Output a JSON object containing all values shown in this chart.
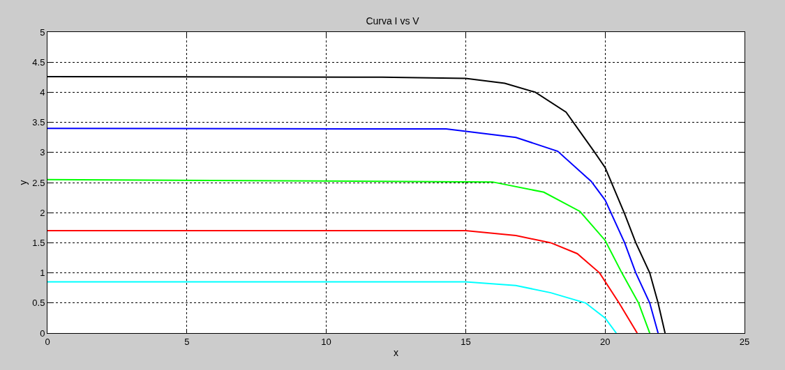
{
  "chart_data": {
    "type": "line",
    "title": "Curva I vs V",
    "xlabel": "x",
    "ylabel": "y",
    "xlim": [
      0,
      25
    ],
    "ylim": [
      0,
      5
    ],
    "xticks": [
      0,
      5,
      10,
      15,
      20,
      25
    ],
    "yticks": [
      0,
      0.5,
      1,
      1.5,
      2,
      2.5,
      3,
      3.5,
      4,
      4.5,
      5
    ],
    "grid": true,
    "marker": "none",
    "line_style": "solid",
    "series": [
      {
        "color": "#000000",
        "x": [
          0,
          12,
          15,
          16.4,
          17.5,
          18.6,
          19.6,
          20,
          20.7,
          21.1,
          21.6,
          21.9,
          22.15
        ],
        "values": [
          4.26,
          4.25,
          4.23,
          4.15,
          4.0,
          3.67,
          3.02,
          2.75,
          1.98,
          1.5,
          1.0,
          0.5,
          0
        ]
      },
      {
        "color": "#0000ff",
        "x": [
          0,
          14.3,
          16.8,
          18.3,
          19.5,
          20,
          20.7,
          21.1,
          21.6,
          21.9
        ],
        "values": [
          3.4,
          3.39,
          3.25,
          3.02,
          2.52,
          2.21,
          1.5,
          1.0,
          0.5,
          0
        ]
      },
      {
        "color": "#00ff00",
        "x": [
          0,
          15.96,
          17.8,
          19.1,
          20,
          20.6,
          21.2,
          21.6
        ],
        "values": [
          2.55,
          2.51,
          2.34,
          2.02,
          1.54,
          1.0,
          0.5,
          0
        ]
      },
      {
        "color": "#ff0000",
        "x": [
          0,
          15,
          16.8,
          18.05,
          19,
          19.8,
          20.5,
          21.15
        ],
        "values": [
          1.7,
          1.7,
          1.62,
          1.5,
          1.32,
          1.0,
          0.5,
          0
        ]
      },
      {
        "color": "#00ffff",
        "x": [
          0,
          15,
          16.8,
          18.05,
          19.3,
          20,
          20.4
        ],
        "values": [
          0.85,
          0.85,
          0.79,
          0.67,
          0.5,
          0.25,
          0
        ]
      }
    ]
  }
}
